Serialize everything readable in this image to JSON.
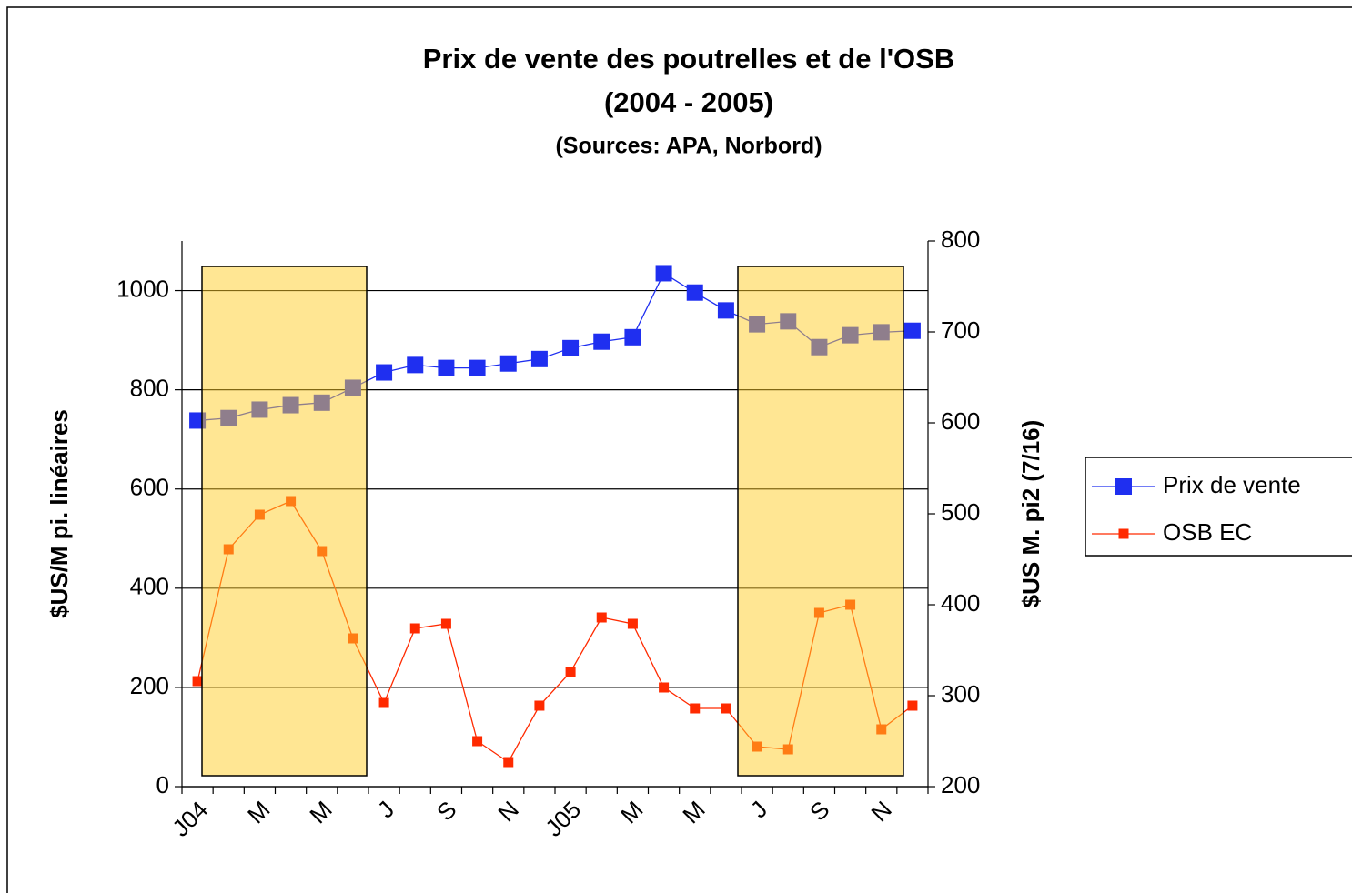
{
  "chart_data": {
    "type": "line",
    "title": "Prix de vente des poutrelles et de l'OSB",
    "subtitle": "(2004 - 2005)",
    "source": "(Sources:  APA, Norbord)",
    "ylabel": "$US/M pi. linéaires",
    "y2label": "$US M. pi2 (7/16)",
    "categories": [
      "J04",
      null,
      "M",
      null,
      "M",
      null,
      "J",
      null,
      "S",
      null,
      "N",
      null,
      "J05",
      null,
      "M",
      null,
      "M",
      null,
      "J",
      null,
      "S",
      null,
      "N",
      null
    ],
    "series": [
      {
        "name": "Prix de vente",
        "color": "#1f2ff0",
        "values": [
          738,
          743,
          760,
          769,
          774,
          804,
          835,
          850,
          844,
          844,
          853,
          862,
          884,
          897,
          906,
          1035,
          996,
          960,
          932,
          938,
          886,
          910,
          916,
          919
        ]
      },
      {
        "name": "OSB EC",
        "color": "#ff2a00",
        "axis": "y2",
        "values": [
          316,
          461,
          499,
          514,
          459,
          363,
          292,
          374,
          379,
          250,
          227,
          289,
          326,
          386,
          379,
          309,
          286,
          286,
          244,
          241,
          391,
          400,
          263,
          289
        ]
      }
    ],
    "ylim": [
      0,
      1100
    ],
    "yticks": [
      0,
      200,
      400,
      600,
      800,
      1000
    ],
    "y2lim": [
      200,
      800
    ],
    "y2ticks": [
      200,
      300,
      400,
      500,
      600,
      700,
      800
    ],
    "grid": true,
    "legend": "right"
  }
}
